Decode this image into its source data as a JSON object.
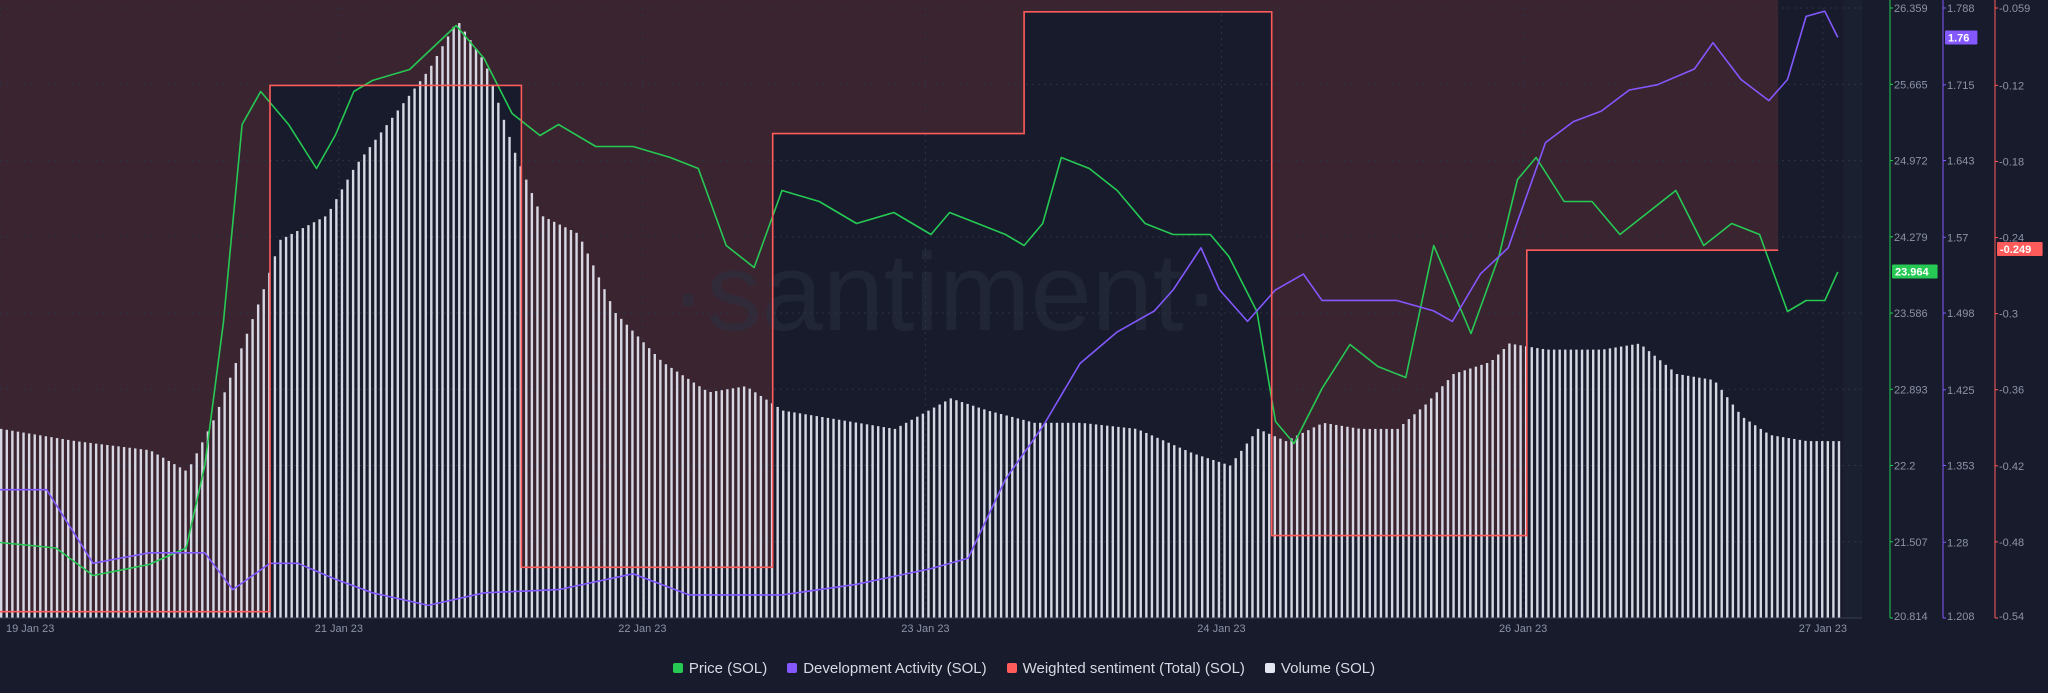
{
  "chart_data": {
    "type": "line",
    "title": "",
    "watermark": "·santiment·",
    "background_color": "#171b2b",
    "grid": true,
    "legend_position": "bottom-center",
    "x_ticks": [
      "19 Jan 23",
      "21 Jan 23",
      "22 Jan 23",
      "23 Jan 23",
      "24 Jan 23",
      "26 Jan 23",
      "27 Jan 23"
    ],
    "x_tick_positions": [
      0,
      1.82,
      3.45,
      4.97,
      6.56,
      8.18,
      9.79
    ],
    "x_range": [
      0,
      10
    ],
    "axes": {
      "price": {
        "min": 20.814,
        "max": 26.359,
        "ticks": [
          "26.359",
          "25.665",
          "24.972",
          "24.279",
          "23.586",
          "22.893",
          "22.2",
          "21.507",
          "20.814"
        ],
        "current": "23.964",
        "color": "#26c953"
      },
      "dev_activity": {
        "min": 1.208,
        "max": 1.788,
        "ticks": [
          "1.788",
          "1.715",
          "1.643",
          "1.57",
          "1.498",
          "1.425",
          "1.353",
          "1.28",
          "1.208"
        ],
        "current": "1.76",
        "color": "#8358ff"
      },
      "sentiment": {
        "min": -0.54,
        "max": -0.059,
        "ticks": [
          "-0.059",
          "-0.12",
          "-0.18",
          "-0.24",
          "-0.3",
          "-0.36",
          "-0.42",
          "-0.48",
          "-0.54"
        ],
        "current": "-0.249",
        "color": "#ff5b5b"
      },
      "volume": {
        "min": 0,
        "max": 1
      }
    },
    "series": [
      {
        "name": "Price (SOL)",
        "color": "#26c953",
        "axis": "price",
        "points": [
          [
            0,
            21.5
          ],
          [
            0.3,
            21.45
          ],
          [
            0.5,
            21.2
          ],
          [
            0.8,
            21.3
          ],
          [
            1.0,
            21.45
          ],
          [
            1.1,
            22.2
          ],
          [
            1.2,
            23.5
          ],
          [
            1.3,
            25.3
          ],
          [
            1.4,
            25.6
          ],
          [
            1.55,
            25.3
          ],
          [
            1.7,
            24.9
          ],
          [
            1.8,
            25.2
          ],
          [
            1.9,
            25.6
          ],
          [
            2.0,
            25.7
          ],
          [
            2.2,
            25.8
          ],
          [
            2.45,
            26.2
          ],
          [
            2.6,
            25.9
          ],
          [
            2.75,
            25.4
          ],
          [
            2.9,
            25.2
          ],
          [
            3.0,
            25.3
          ],
          [
            3.2,
            25.1
          ],
          [
            3.4,
            25.1
          ],
          [
            3.6,
            25.0
          ],
          [
            3.75,
            24.9
          ],
          [
            3.9,
            24.2
          ],
          [
            4.05,
            24.0
          ],
          [
            4.2,
            24.7
          ],
          [
            4.4,
            24.6
          ],
          [
            4.6,
            24.4
          ],
          [
            4.8,
            24.5
          ],
          [
            5.0,
            24.3
          ],
          [
            5.1,
            24.5
          ],
          [
            5.25,
            24.4
          ],
          [
            5.4,
            24.3
          ],
          [
            5.5,
            24.2
          ],
          [
            5.6,
            24.4
          ],
          [
            5.7,
            25.0
          ],
          [
            5.85,
            24.9
          ],
          [
            6.0,
            24.7
          ],
          [
            6.15,
            24.4
          ],
          [
            6.3,
            24.3
          ],
          [
            6.5,
            24.3
          ],
          [
            6.6,
            24.1
          ],
          [
            6.75,
            23.6
          ],
          [
            6.85,
            22.6
          ],
          [
            6.95,
            22.4
          ],
          [
            7.1,
            22.9
          ],
          [
            7.25,
            23.3
          ],
          [
            7.4,
            23.1
          ],
          [
            7.55,
            23.0
          ],
          [
            7.7,
            24.2
          ],
          [
            7.8,
            23.8
          ],
          [
            7.9,
            23.4
          ],
          [
            8.05,
            24.1
          ],
          [
            8.15,
            24.8
          ],
          [
            8.25,
            25.0
          ],
          [
            8.4,
            24.6
          ],
          [
            8.55,
            24.6
          ],
          [
            8.7,
            24.3
          ],
          [
            8.85,
            24.5
          ],
          [
            9.0,
            24.7
          ],
          [
            9.15,
            24.2
          ],
          [
            9.3,
            24.4
          ],
          [
            9.45,
            24.3
          ],
          [
            9.6,
            23.6
          ],
          [
            9.7,
            23.7
          ],
          [
            9.8,
            23.7
          ],
          [
            9.87,
            23.96
          ]
        ]
      },
      {
        "name": "Development Activity (SOL)",
        "color": "#8358ff",
        "axis": "dev_activity",
        "points": [
          [
            0,
            1.33
          ],
          [
            0.25,
            1.33
          ],
          [
            0.5,
            1.26
          ],
          [
            0.8,
            1.27
          ],
          [
            1.0,
            1.27
          ],
          [
            1.1,
            1.27
          ],
          [
            1.25,
            1.235
          ],
          [
            1.45,
            1.26
          ],
          [
            1.6,
            1.26
          ],
          [
            1.8,
            1.245
          ],
          [
            2.0,
            1.232
          ],
          [
            2.3,
            1.22
          ],
          [
            2.6,
            1.232
          ],
          [
            3.0,
            1.235
          ],
          [
            3.4,
            1.25
          ],
          [
            3.7,
            1.23
          ],
          [
            4.2,
            1.23
          ],
          [
            4.6,
            1.24
          ],
          [
            5.0,
            1.255
          ],
          [
            5.2,
            1.265
          ],
          [
            5.4,
            1.34
          ],
          [
            5.6,
            1.39
          ],
          [
            5.8,
            1.45
          ],
          [
            6.0,
            1.48
          ],
          [
            6.2,
            1.5
          ],
          [
            6.3,
            1.52
          ],
          [
            6.45,
            1.56
          ],
          [
            6.55,
            1.52
          ],
          [
            6.7,
            1.49
          ],
          [
            6.85,
            1.52
          ],
          [
            7.0,
            1.535
          ],
          [
            7.1,
            1.51
          ],
          [
            7.3,
            1.51
          ],
          [
            7.5,
            1.51
          ],
          [
            7.7,
            1.5
          ],
          [
            7.8,
            1.49
          ],
          [
            7.95,
            1.535
          ],
          [
            8.1,
            1.56
          ],
          [
            8.3,
            1.66
          ],
          [
            8.45,
            1.68
          ],
          [
            8.6,
            1.69
          ],
          [
            8.75,
            1.71
          ],
          [
            8.9,
            1.715
          ],
          [
            9.1,
            1.73
          ],
          [
            9.2,
            1.755
          ],
          [
            9.35,
            1.72
          ],
          [
            9.5,
            1.7
          ],
          [
            9.6,
            1.72
          ],
          [
            9.7,
            1.78
          ],
          [
            9.8,
            1.785
          ],
          [
            9.87,
            1.76
          ]
        ]
      },
      {
        "name": "Weighted sentiment (Total) (SOL)",
        "color": "#ff5b5b",
        "axis": "sentiment",
        "step": true,
        "points": [
          [
            0,
            -0.535
          ],
          [
            1.45,
            -0.535
          ],
          [
            1.45,
            -0.12
          ],
          [
            2.8,
            -0.12
          ],
          [
            2.8,
            -0.5
          ],
          [
            4.15,
            -0.5
          ],
          [
            4.15,
            -0.158
          ],
          [
            5.5,
            -0.158
          ],
          [
            5.5,
            -0.062
          ],
          [
            6.83,
            -0.062
          ],
          [
            6.83,
            -0.475
          ],
          [
            8.2,
            -0.475
          ],
          [
            8.2,
            -0.25
          ],
          [
            9.55,
            -0.25
          ]
        ]
      },
      {
        "name": "Volume (SOL)",
        "color": "#e4e7f2",
        "axis": "volume",
        "type": "bar",
        "points": [
          [
            0,
            0.31
          ],
          [
            0.4,
            0.29
          ],
          [
            0.8,
            0.275
          ],
          [
            1.0,
            0.24
          ],
          [
            1.15,
            0.33
          ],
          [
            1.3,
            0.45
          ],
          [
            1.4,
            0.53
          ],
          [
            1.5,
            0.62
          ],
          [
            1.75,
            0.66
          ],
          [
            1.9,
            0.74
          ],
          [
            2.1,
            0.82
          ],
          [
            2.3,
            0.9
          ],
          [
            2.45,
            0.98
          ],
          [
            2.6,
            0.91
          ],
          [
            2.75,
            0.77
          ],
          [
            2.9,
            0.66
          ],
          [
            3.1,
            0.63
          ],
          [
            3.3,
            0.5
          ],
          [
            3.55,
            0.42
          ],
          [
            3.8,
            0.37
          ],
          [
            4.0,
            0.38
          ],
          [
            4.2,
            0.34
          ],
          [
            4.4,
            0.33
          ],
          [
            4.8,
            0.31
          ],
          [
            5.1,
            0.36
          ],
          [
            5.3,
            0.34
          ],
          [
            5.55,
            0.32
          ],
          [
            5.8,
            0.32
          ],
          [
            6.1,
            0.31
          ],
          [
            6.4,
            0.27
          ],
          [
            6.6,
            0.25
          ],
          [
            6.75,
            0.31
          ],
          [
            6.9,
            0.29
          ],
          [
            7.1,
            0.32
          ],
          [
            7.3,
            0.31
          ],
          [
            7.5,
            0.31
          ],
          [
            7.65,
            0.35
          ],
          [
            7.8,
            0.4
          ],
          [
            8.0,
            0.42
          ],
          [
            8.1,
            0.45
          ],
          [
            8.3,
            0.44
          ],
          [
            8.6,
            0.44
          ],
          [
            8.8,
            0.45
          ],
          [
            9.0,
            0.4
          ],
          [
            9.2,
            0.39
          ],
          [
            9.35,
            0.33
          ],
          [
            9.5,
            0.3
          ],
          [
            9.7,
            0.29
          ],
          [
            9.87,
            0.29
          ]
        ]
      }
    ]
  }
}
